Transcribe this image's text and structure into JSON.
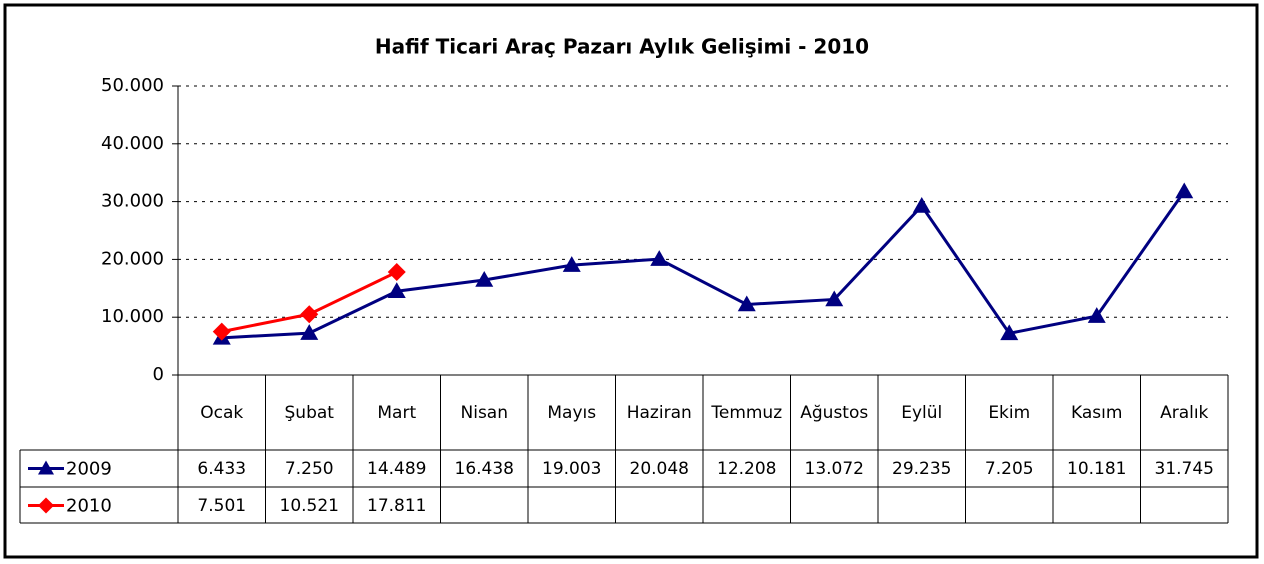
{
  "chart_data": {
    "type": "line",
    "title": "Hafif Ticari Araç Pazarı Aylık Gelişimi - 2010",
    "categories": [
      "Ocak",
      "Şubat",
      "Mart",
      "Nisan",
      "Mayıs",
      "Haziran",
      "Temmuz",
      "Ağustos",
      "Eylül",
      "Ekim",
      "Kasım",
      "Aralık"
    ],
    "series": [
      {
        "name": "2009",
        "color": "#000080",
        "marker": "triangle",
        "values": [
          6433,
          7250,
          14489,
          16438,
          19003,
          20048,
          12208,
          13072,
          29235,
          7205,
          10181,
          31745
        ],
        "value_labels": [
          "6.433",
          "7.250",
          "14.489",
          "16.438",
          "19.003",
          "20.048",
          "12.208",
          "13.072",
          "29.235",
          "7.205",
          "10.181",
          "31.745"
        ]
      },
      {
        "name": "2010",
        "color": "#ff0000",
        "marker": "diamond",
        "values": [
          7501,
          10521,
          17811,
          null,
          null,
          null,
          null,
          null,
          null,
          null,
          null,
          null
        ],
        "value_labels": [
          "7.501",
          "10.521",
          "17.811",
          null,
          null,
          null,
          null,
          null,
          null,
          null,
          null,
          null
        ]
      }
    ],
    "ylim": [
      0,
      50000
    ],
    "yticks": [
      0,
      {
        "value": 10000,
        "label": "10.000"
      },
      {
        "value": 20000,
        "label": "20.000"
      },
      {
        "value": 30000,
        "label": "30.000"
      },
      {
        "value": 40000,
        "label": "40.000"
      },
      {
        "value": 50000,
        "label": "50.000"
      }
    ],
    "grid": true
  }
}
